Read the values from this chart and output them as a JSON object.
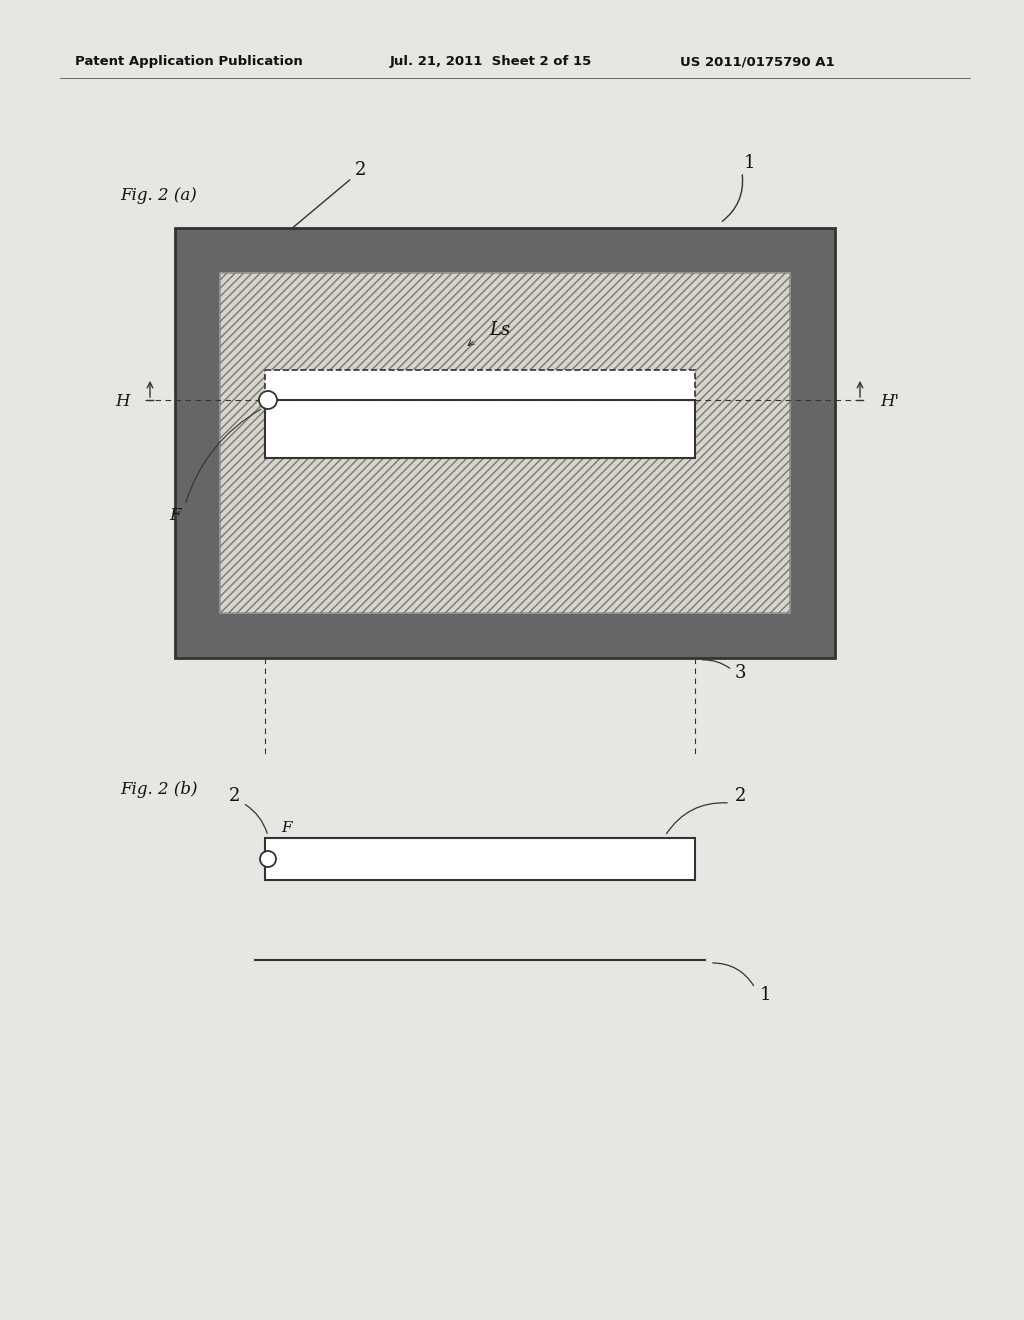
{
  "bg_color": "#e8e6e2",
  "header_text_left": "Patent Application Publication",
  "header_text_mid": "Jul. 21, 2011  Sheet 2 of 15",
  "header_text_right": "US 2011/0175790 A1",
  "fig_a_label": "Fig. 2 (a)",
  "fig_b_label": "Fig. 2 (b)",
  "label_1a": "1",
  "label_2a": "2",
  "label_3": "3",
  "label_Ls": "Ls",
  "label_H": "H",
  "label_Hprime": "H'",
  "label_F_a": "F",
  "label_F_b": "F",
  "label_1b": "1",
  "label_2b_left": "2",
  "label_2b_right": "2",
  "dark_border_color": "#666666",
  "medium_gray": "#999999",
  "hatch_color": "#888888",
  "line_color": "#333333",
  "text_color": "#111111",
  "white": "#ffffff"
}
